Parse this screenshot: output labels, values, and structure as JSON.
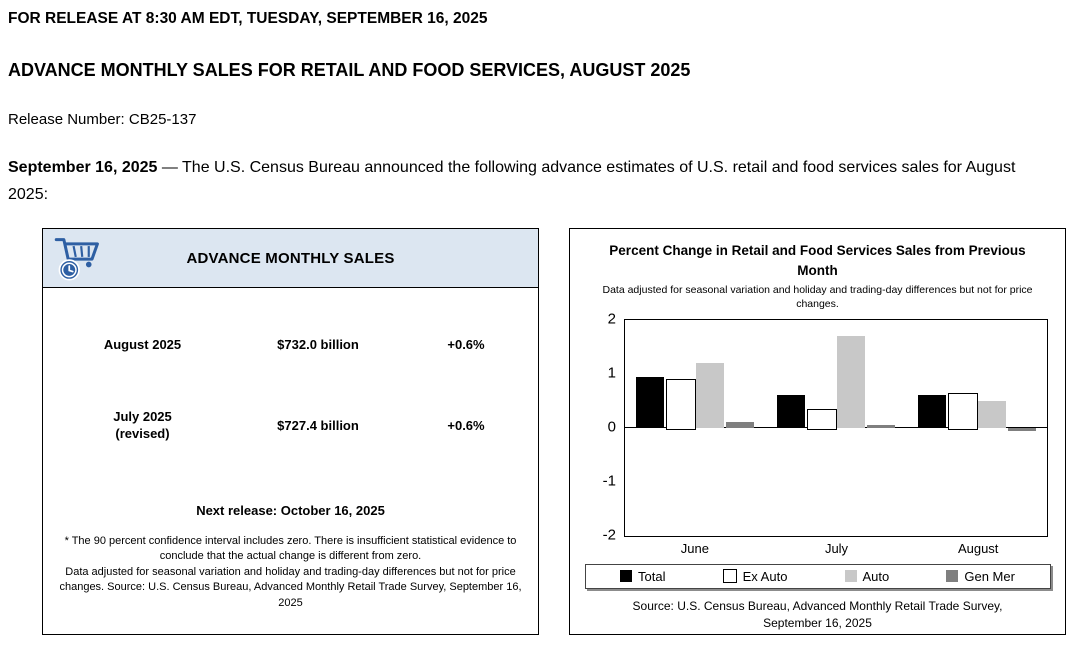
{
  "page": {
    "release_line": "FOR RELEASE AT 8:30 AM EDT, TUESDAY, SEPTEMBER 16, 2025",
    "title": "ADVANCE MONTHLY SALES FOR RETAIL AND FOOD SERVICES, AUGUST 2025",
    "release_number": "Release Number: CB25-137",
    "intro_date": "September 16, 2025",
    "intro_text": " — The U.S. Census Bureau announced the following advance estimates of U.S. retail and food services sales for August 2025:"
  },
  "sales_box": {
    "header": "ADVANCE MONTHLY SALES",
    "rows": [
      {
        "label": "August 2025",
        "label2": "",
        "value": "$732.0 billion",
        "change": "+0.6%"
      },
      {
        "label": "July 2025",
        "label2": "(revised)",
        "value": "$727.4 billion",
        "change": "+0.6%"
      }
    ],
    "next_release": "Next release: October 16, 2025",
    "footnote1": "* The 90 percent confidence interval includes zero. There is insufficient statistical evidence to conclude that the actual change is different from zero.",
    "footnote2": "Data adjusted for seasonal variation and holiday and trading-day differences but not for price changes. Source: U.S. Census Bureau, Advanced Monthly Retail Trade Survey, September 16, 2025"
  },
  "chart_data": {
    "type": "bar",
    "title": "Percent Change in Retail and Food Services Sales from Previous Month",
    "subtitle": "Data adjusted for seasonal variation and holiday and trading-day differences but not for price changes.",
    "categories": [
      "June",
      "July",
      "August"
    ],
    "series": [
      {
        "name": "Total",
        "color": "#000000",
        "values": [
          0.95,
          0.6,
          0.6
        ]
      },
      {
        "name": "Ex Auto",
        "color": "#ffffff",
        "values": [
          0.9,
          0.35,
          0.65
        ]
      },
      {
        "name": "Auto",
        "color": "#c8c8c8",
        "values": [
          1.2,
          1.7,
          0.5
        ]
      },
      {
        "name": "Gen Mer",
        "color": "#7f7f7f",
        "values": [
          0.1,
          0.05,
          -0.05
        ]
      }
    ],
    "ylim": [
      -2,
      2
    ],
    "yticks": [
      2,
      1,
      0,
      -1,
      -2
    ],
    "grid": false,
    "legend_position": "bottom",
    "source": "Source: U.S. Census Bureau, Advanced Monthly Retail Trade Survey, September 16, 2025"
  }
}
